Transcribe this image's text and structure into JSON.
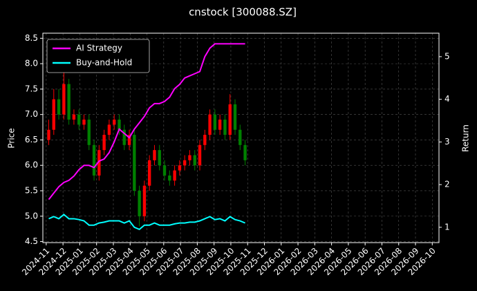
{
  "chart_data": {
    "type": "candlestick",
    "title": "cnstock [300088.SZ]",
    "y_label": "Price",
    "y2_label": "Return",
    "x": [
      0.15,
      0.45,
      0.75,
      1.05,
      1.35,
      1.65,
      1.95,
      2.25,
      2.55,
      2.85,
      3.15,
      3.45,
      3.75,
      4.05,
      4.35,
      4.65,
      4.95,
      5.25,
      5.55,
      5.85,
      6.15,
      6.45,
      6.75,
      7.05,
      7.35,
      7.65,
      7.95,
      8.25,
      8.55,
      8.85,
      9.15,
      9.45,
      9.75,
      10.05,
      10.35,
      10.65,
      10.95,
      11.25,
      11.55,
      11.85
    ],
    "open": [
      6.5,
      6.7,
      7.3,
      7.0,
      7.6,
      6.9,
      7.0,
      6.8,
      6.9,
      6.4,
      5.8,
      6.3,
      6.6,
      6.8,
      6.9,
      6.7,
      6.4,
      6.6,
      5.5,
      5.0,
      5.6,
      6.1,
      6.3,
      6.0,
      5.8,
      5.7,
      5.9,
      6.0,
      6.1,
      6.2,
      6.0,
      6.4,
      6.6,
      7.0,
      6.7,
      6.9,
      6.6,
      7.2,
      6.7,
      6.4
    ],
    "high": [
      6.9,
      7.5,
      7.5,
      7.9,
      7.7,
      7.1,
      7.1,
      7.0,
      7.0,
      6.5,
      6.4,
      6.7,
      6.9,
      7.0,
      7.0,
      6.8,
      6.7,
      6.7,
      5.6,
      5.7,
      6.2,
      6.4,
      6.4,
      6.1,
      5.9,
      6.0,
      6.1,
      6.2,
      6.3,
      6.3,
      6.5,
      6.7,
      7.1,
      7.1,
      7.0,
      7.0,
      7.4,
      7.3,
      6.8,
      6.5
    ],
    "low": [
      6.4,
      6.6,
      6.9,
      6.9,
      6.8,
      6.8,
      6.7,
      6.7,
      6.3,
      5.7,
      5.7,
      6.2,
      6.5,
      6.7,
      6.6,
      6.3,
      6.3,
      5.4,
      4.8,
      4.9,
      5.5,
      6.0,
      5.9,
      5.7,
      5.6,
      5.6,
      5.8,
      5.9,
      6.0,
      5.9,
      5.9,
      6.3,
      6.5,
      6.6,
      6.6,
      6.5,
      6.5,
      6.6,
      6.3,
      6.0
    ],
    "close": [
      6.7,
      7.3,
      7.0,
      7.6,
      6.9,
      7.0,
      6.8,
      6.9,
      6.4,
      5.8,
      6.3,
      6.6,
      6.8,
      6.9,
      6.7,
      6.4,
      6.6,
      5.5,
      5.0,
      5.6,
      6.1,
      6.3,
      6.0,
      5.8,
      5.7,
      5.9,
      6.0,
      6.1,
      6.2,
      6.0,
      6.4,
      6.6,
      7.0,
      6.7,
      6.9,
      6.6,
      7.2,
      6.7,
      6.4,
      6.1
    ],
    "up_color": "#ff0000",
    "down_color": "#008000",
    "series": [
      {
        "name": "AI Strategy",
        "color": "#ff00ff",
        "axis": "y2",
        "values": [
          1.65,
          1.8,
          1.95,
          2.05,
          2.1,
          2.2,
          2.35,
          2.45,
          2.45,
          2.4,
          2.55,
          2.6,
          2.75,
          3.0,
          3.3,
          3.2,
          3.1,
          3.3,
          3.45,
          3.6,
          3.8,
          3.9,
          3.9,
          3.95,
          4.05,
          4.25,
          4.35,
          4.5,
          4.55,
          4.6,
          4.65,
          5.0,
          5.2,
          5.3,
          5.3,
          5.3,
          5.3,
          5.3,
          5.3,
          5.3
        ]
      },
      {
        "name": "Buy-and-Hold",
        "color": "#00ffff",
        "axis": "y2",
        "values": [
          1.2,
          1.25,
          1.2,
          1.3,
          1.2,
          1.2,
          1.18,
          1.15,
          1.05,
          1.05,
          1.1,
          1.12,
          1.15,
          1.15,
          1.15,
          1.1,
          1.15,
          1.0,
          0.95,
          1.05,
          1.05,
          1.1,
          1.05,
          1.05,
          1.05,
          1.08,
          1.1,
          1.1,
          1.12,
          1.12,
          1.15,
          1.2,
          1.25,
          1.18,
          1.2,
          1.15,
          1.25,
          1.18,
          1.15,
          1.1
        ]
      }
    ],
    "xlim": [
      -0.2,
      23.4
    ],
    "xticks": [
      {
        "value": 0,
        "label": "2024-11"
      },
      {
        "value": 1,
        "label": "2024-12"
      },
      {
        "value": 2,
        "label": "2025-01"
      },
      {
        "value": 3,
        "label": "2025-02"
      },
      {
        "value": 4,
        "label": "2025-03"
      },
      {
        "value": 5,
        "label": "2025-04"
      },
      {
        "value": 6,
        "label": "2025-05"
      },
      {
        "value": 7,
        "label": "2025-06"
      },
      {
        "value": 8,
        "label": "2025-07"
      },
      {
        "value": 9,
        "label": "2025-08"
      },
      {
        "value": 10,
        "label": "2025-09"
      },
      {
        "value": 11,
        "label": "2025-10"
      },
      {
        "value": 12,
        "label": "2025-11"
      },
      {
        "value": 13,
        "label": "2025-12"
      },
      {
        "value": 14,
        "label": "2026-01"
      },
      {
        "value": 15,
        "label": "2026-02"
      },
      {
        "value": 16,
        "label": "2026-03"
      },
      {
        "value": 17,
        "label": "2026-04"
      },
      {
        "value": 18,
        "label": "2026-05"
      },
      {
        "value": 19,
        "label": "2026-06"
      },
      {
        "value": 20,
        "label": "2026-07"
      },
      {
        "value": 21,
        "label": "2026-08"
      },
      {
        "value": 22,
        "label": "2026-09"
      },
      {
        "value": 23,
        "label": "2026-10"
      }
    ],
    "ylim": [
      4.48,
      8.6
    ],
    "yticks": [
      4.5,
      {
        "value": 5,
        "label": "5.0"
      },
      5.5,
      {
        "value": 6,
        "label": "6.0"
      },
      6.5,
      {
        "value": 7,
        "label": "7.0"
      },
      7.5,
      {
        "value": 8,
        "label": "8.0"
      },
      8.5
    ],
    "y2lim": [
      0.64,
      5.55
    ],
    "y2ticks": [
      1,
      2,
      3,
      4,
      5
    ],
    "grid": true,
    "legend": "upper left"
  }
}
